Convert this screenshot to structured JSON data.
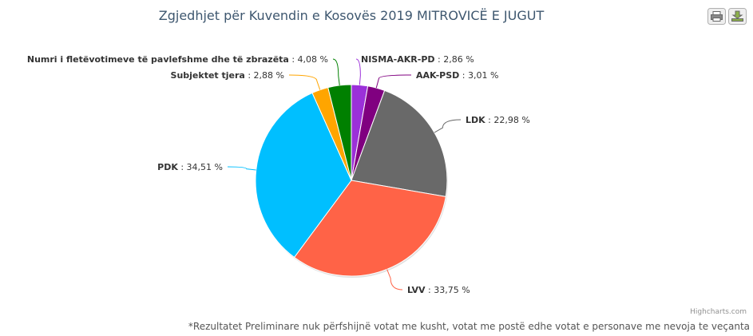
{
  "chart_data": {
    "type": "pie",
    "title": "Zgjedhjet për Kuvendin e Kosovës 2019 MITROVICË E JUGUT",
    "value_suffix": " %",
    "slices": [
      {
        "name": "NISMA-AKR-PD",
        "value": 2.86,
        "value_label": "2,86",
        "color": "#9b30d9"
      },
      {
        "name": "AAK-PSD",
        "value": 3.01,
        "value_label": "3,01",
        "color": "#800080"
      },
      {
        "name": "LDK",
        "value": 22.98,
        "value_label": "22,98",
        "color": "#696969"
      },
      {
        "name": "LVV",
        "value": 33.75,
        "value_label": "33,75",
        "color": "#ff6347"
      },
      {
        "name": "PDK",
        "value": 34.51,
        "value_label": "34,51",
        "color": "#00bfff"
      },
      {
        "name": "Subjektet tjera",
        "value": 2.88,
        "value_label": "2,88",
        "color": "#ffa500"
      },
      {
        "name": "Numri i fletëvotimeve të pavlefshme dhe të zbrazëta",
        "value": 4.08,
        "value_label": "4,08",
        "color": "#008000"
      }
    ]
  },
  "credits": "Highcharts.com",
  "footnote": "*Rezultatet Preliminare nuk përfshijnë votat me kusht, votat me postë edhe votat e personave me nevoja te veçanta",
  "toolbar": {
    "print_icon": "printer-icon",
    "export_icon": "download-icon"
  }
}
